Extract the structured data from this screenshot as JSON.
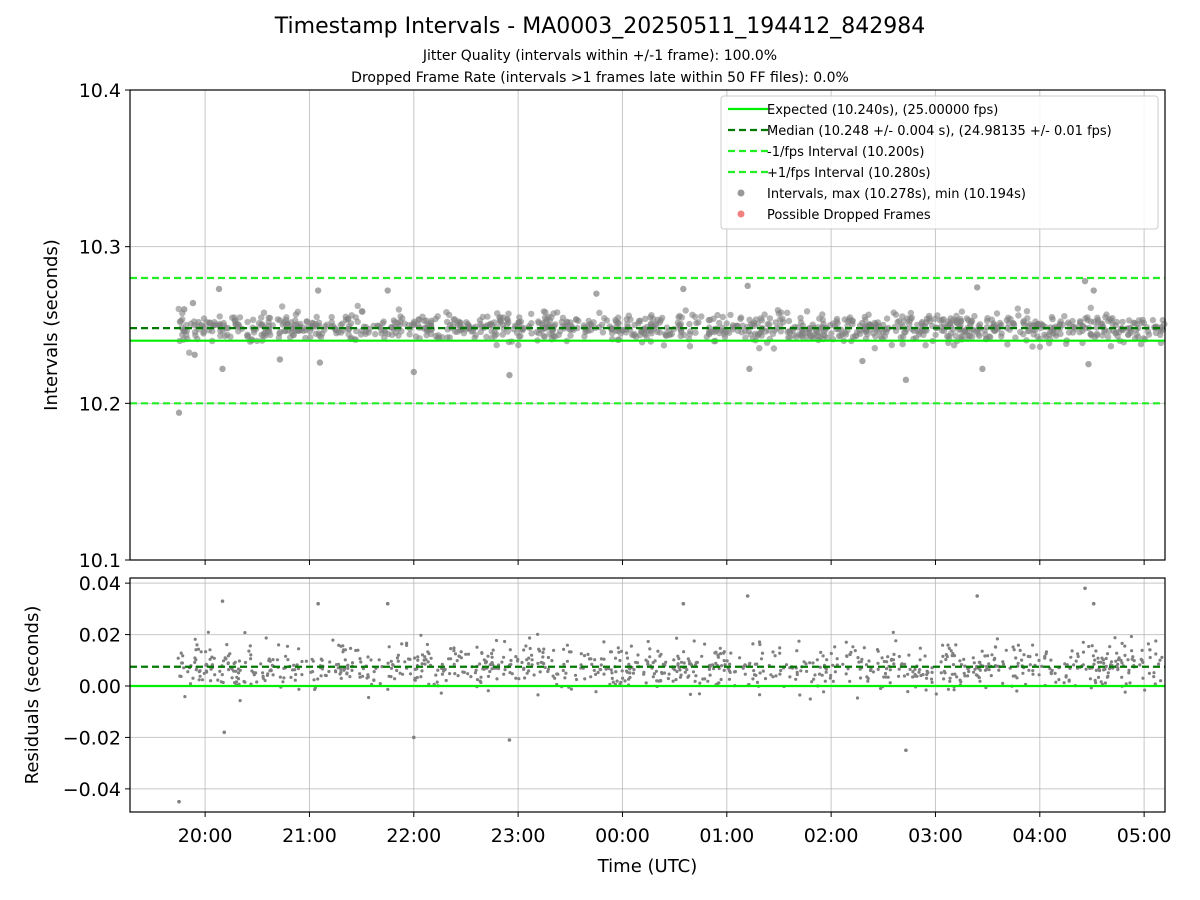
{
  "figure": {
    "title": "Timestamp Intervals - MA0003_20250511_194412_842984",
    "subtitle_1": "Jitter Quality (intervals within +/-1 frame): 100.0%",
    "subtitle_2": "Dropped Frame Rate (intervals >1 frames late within 50 FF files): 0.0%"
  },
  "colors": {
    "expected": "#00ee00",
    "median": "#007a00",
    "interval_bounds": "#22ee22",
    "points": "#808080",
    "dropped": "#f06060",
    "grid": "#b0b0b0"
  },
  "chart_data": [
    {
      "type": "scatter",
      "ylabel": "Intervals (seconds)",
      "xlabel": "",
      "ylim": [
        10.1,
        10.4
      ],
      "yticks": [
        10.1,
        10.2,
        10.3,
        10.4
      ],
      "ytick_labels": [
        "10.1",
        "10.2",
        "10.3",
        "10.4"
      ],
      "xlim_hours": [
        19.28,
        29.2
      ],
      "grid": true,
      "legend_position": "top-right",
      "reference_lines": [
        {
          "name": "Expected (10.240s), (25.00000 fps)",
          "value": 10.24,
          "style": "solid",
          "color_key": "expected"
        },
        {
          "name": "Median (10.248 +/- 0.004 s), (24.98135 +/- 0.01 fps)",
          "value": 10.248,
          "style": "dashed",
          "color_key": "median"
        },
        {
          "name": "-1/fps Interval (10.200s)",
          "value": 10.2,
          "style": "dashed",
          "color_key": "interval_bounds"
        },
        {
          "name": "+1/fps Interval (10.280s)",
          "value": 10.28,
          "style": "dashed",
          "color_key": "interval_bounds"
        }
      ],
      "series": [
        {
          "name": "Intervals, max (10.278s), min (10.194s)",
          "marker": "circle",
          "color_key": "points",
          "max": 10.278,
          "min": 10.194
        },
        {
          "name": "Possible Dropped Frames",
          "marker": "circle",
          "color_key": "dropped",
          "values": []
        }
      ],
      "sample_points": [
        {
          "x": "19:45",
          "y": 10.194
        },
        {
          "x": "19:48",
          "y": 10.26
        },
        {
          "x": "19:53",
          "y": 10.264
        },
        {
          "x": "19:54",
          "y": 10.231
        },
        {
          "x": "20:08",
          "y": 10.273
        },
        {
          "x": "20:10",
          "y": 10.222
        },
        {
          "x": "20:43",
          "y": 10.228
        },
        {
          "x": "21:05",
          "y": 10.272
        },
        {
          "x": "21:06",
          "y": 10.226
        },
        {
          "x": "21:45",
          "y": 10.272
        },
        {
          "x": "22:00",
          "y": 10.22
        },
        {
          "x": "22:55",
          "y": 10.218
        },
        {
          "x": "23:45",
          "y": 10.27
        },
        {
          "x": "00:35",
          "y": 10.273
        },
        {
          "x": "01:12",
          "y": 10.275
        },
        {
          "x": "01:13",
          "y": 10.222
        },
        {
          "x": "02:18",
          "y": 10.227
        },
        {
          "x": "02:43",
          "y": 10.215
        },
        {
          "x": "03:24",
          "y": 10.274
        },
        {
          "x": "03:27",
          "y": 10.222
        },
        {
          "x": "04:26",
          "y": 10.278
        },
        {
          "x": "04:31",
          "y": 10.272
        },
        {
          "x": "04:28",
          "y": 10.225
        }
      ]
    },
    {
      "type": "scatter",
      "ylabel": "Residuals (seconds)",
      "xlabel": "Time (UTC)",
      "ylim": [
        -0.049,
        0.042
      ],
      "yticks": [
        -0.04,
        -0.02,
        0.0,
        0.02,
        0.04
      ],
      "ytick_labels": [
        "−0.04",
        "−0.02",
        "0.00",
        "0.02",
        "0.04"
      ],
      "xlim_hours": [
        19.28,
        29.2
      ],
      "xticks_hours": [
        20,
        21,
        22,
        23,
        24,
        25,
        26,
        27,
        28,
        29
      ],
      "xtick_labels": [
        "20:00",
        "21:00",
        "22:00",
        "23:00",
        "00:00",
        "01:00",
        "02:00",
        "03:00",
        "04:00",
        "05:00"
      ],
      "grid": true,
      "reference_lines": [
        {
          "value": 0.0,
          "style": "solid",
          "color_key": "expected"
        },
        {
          "value": 0.0075,
          "style": "dashed",
          "color_key": "median"
        }
      ],
      "series": [
        {
          "name": "Residuals",
          "marker": "point",
          "color_key": "points"
        }
      ],
      "sample_points": [
        {
          "x": "19:45",
          "y": -0.045
        },
        {
          "x": "20:10",
          "y": 0.033
        },
        {
          "x": "20:11",
          "y": -0.018
        },
        {
          "x": "21:05",
          "y": 0.032
        },
        {
          "x": "21:45",
          "y": 0.032
        },
        {
          "x": "22:00",
          "y": -0.02
        },
        {
          "x": "22:55",
          "y": -0.021
        },
        {
          "x": "00:35",
          "y": 0.032
        },
        {
          "x": "01:12",
          "y": 0.035
        },
        {
          "x": "02:43",
          "y": -0.025
        },
        {
          "x": "03:24",
          "y": 0.035
        },
        {
          "x": "04:26",
          "y": 0.038
        },
        {
          "x": "04:31",
          "y": 0.032
        }
      ]
    }
  ]
}
